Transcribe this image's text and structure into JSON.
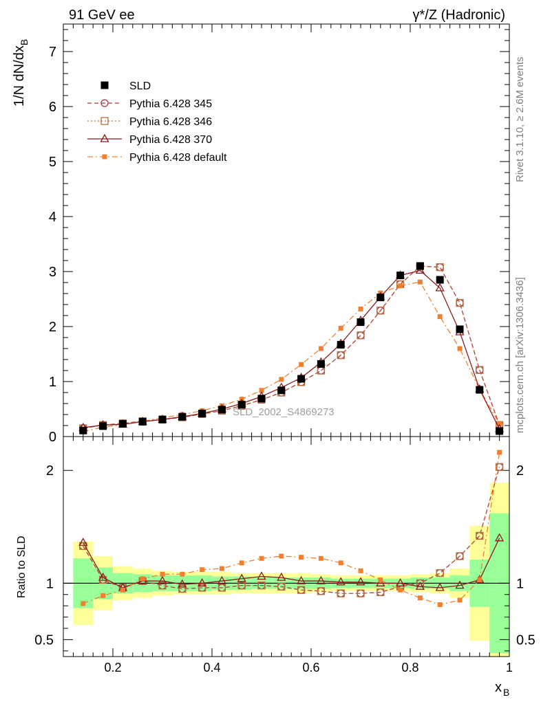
{
  "header": {
    "left": "91 GeV ee",
    "right": "γ*/Z (Hadronic)"
  },
  "side": {
    "rivet": "Rivet 3.1.10, ≥ 2.6M events",
    "mcplots": "mcplots.cern.ch [arXiv:1306.3436]"
  },
  "watermark": "SLD_2002_S4869273",
  "chart_data": [
    {
      "type": "line",
      "ylabel": "1/N dN/dx_B",
      "xlim": [
        0.1,
        1.0
      ],
      "ylim": [
        0,
        7.5
      ],
      "y_ticks": [
        0,
        1,
        2,
        3,
        4,
        5,
        6,
        7
      ],
      "x": [
        0.14,
        0.18,
        0.22,
        0.26,
        0.3,
        0.34,
        0.38,
        0.42,
        0.46,
        0.5,
        0.54,
        0.58,
        0.62,
        0.66,
        0.7,
        0.74,
        0.78,
        0.82,
        0.86,
        0.9,
        0.94,
        0.98
      ],
      "series": [
        {
          "name": "SLD",
          "color": "#000000",
          "marker": "filled-square",
          "line": "none",
          "values": [
            0.11,
            0.19,
            0.23,
            0.27,
            0.31,
            0.36,
            0.42,
            0.49,
            0.58,
            0.69,
            0.84,
            1.05,
            1.32,
            1.67,
            2.08,
            2.53,
            2.93,
            3.1,
            2.85,
            1.95,
            0.85,
            0.1
          ]
        },
        {
          "name": "Pythia 6.428 345",
          "color": "#b03040",
          "marker": "open-circle",
          "line": "dashed",
          "values": [
            0.15,
            0.21,
            0.24,
            0.28,
            0.31,
            0.35,
            0.41,
            0.47,
            0.56,
            0.67,
            0.8,
            0.99,
            1.2,
            1.48,
            1.84,
            2.29,
            2.77,
            3.1,
            3.08,
            2.43,
            1.21,
            0.21
          ]
        },
        {
          "name": "Pythia 6.428 346",
          "color": "#b07040",
          "marker": "open-square",
          "line": "dotted",
          "values": [
            0.15,
            0.21,
            0.24,
            0.28,
            0.31,
            0.35,
            0.41,
            0.47,
            0.56,
            0.67,
            0.8,
            0.99,
            1.2,
            1.48,
            1.84,
            2.29,
            2.77,
            3.1,
            3.08,
            2.43,
            1.21,
            0.21
          ]
        },
        {
          "name": "Pythia 6.428 370",
          "color": "#8b1a1a",
          "marker": "open-triangle",
          "line": "solid",
          "values": [
            0.16,
            0.21,
            0.22,
            0.27,
            0.31,
            0.36,
            0.42,
            0.5,
            0.6,
            0.73,
            0.89,
            1.07,
            1.35,
            1.69,
            2.11,
            2.54,
            2.93,
            3.02,
            2.7,
            1.9,
            0.86,
            0.14
          ]
        },
        {
          "name": "Pythia 6.428 default",
          "color": "#f08030",
          "marker": "filled-small-square",
          "line": "dash-dot",
          "values": [
            0.09,
            0.17,
            0.22,
            0.28,
            0.34,
            0.4,
            0.47,
            0.56,
            0.68,
            0.84,
            1.04,
            1.31,
            1.6,
            1.97,
            2.32,
            2.61,
            2.74,
            2.81,
            2.18,
            1.6,
            0.86,
            0.23
          ]
        }
      ],
      "legend_position": "top-left"
    },
    {
      "type": "line",
      "ylabel": "Ratio to SLD",
      "xlabel": "x_B",
      "xlim": [
        0.1,
        1.0
      ],
      "ylim": [
        0.35,
        2.3
      ],
      "y_ticks": [
        0.5,
        1,
        2
      ],
      "x_ticks": [
        0.2,
        0.4,
        0.6,
        0.8,
        1
      ],
      "x": [
        0.14,
        0.18,
        0.22,
        0.26,
        0.3,
        0.34,
        0.38,
        0.42,
        0.46,
        0.5,
        0.54,
        0.58,
        0.62,
        0.66,
        0.7,
        0.74,
        0.78,
        0.82,
        0.86,
        0.9,
        0.94,
        0.98
      ],
      "reference_line": 1,
      "bands": {
        "inner_color": "#99ff99",
        "outer_color": "#ffff99",
        "inner_half_width": [
          0.22,
          0.14,
          0.09,
          0.08,
          0.07,
          0.07,
          0.07,
          0.06,
          0.06,
          0.05,
          0.05,
          0.05,
          0.05,
          0.04,
          0.04,
          0.04,
          0.04,
          0.05,
          0.05,
          0.07,
          0.21,
          0.62
        ],
        "outer_half_width": [
          0.37,
          0.24,
          0.15,
          0.13,
          0.11,
          0.1,
          0.1,
          0.1,
          0.09,
          0.09,
          0.09,
          0.09,
          0.08,
          0.07,
          0.07,
          0.07,
          0.07,
          0.08,
          0.09,
          0.13,
          0.51,
          0.89
        ]
      },
      "series": [
        {
          "name": "Pythia 6.428 345",
          "color": "#b03040",
          "values": [
            1.33,
            1.03,
            0.96,
            1.02,
            0.98,
            0.95,
            0.96,
            0.96,
            0.98,
            0.98,
            0.97,
            0.94,
            0.93,
            0.91,
            0.91,
            0.92,
            0.97,
            1.0,
            1.09,
            1.24,
            1.42,
            2.03
          ]
        },
        {
          "name": "Pythia 6.428 346",
          "color": "#b07040",
          "values": [
            1.33,
            1.03,
            0.96,
            1.02,
            0.98,
            0.95,
            0.96,
            0.96,
            0.98,
            0.98,
            0.97,
            0.94,
            0.93,
            0.91,
            0.91,
            0.92,
            0.97,
            1.0,
            1.09,
            1.24,
            1.42,
            2.03
          ]
        },
        {
          "name": "Pythia 6.428 370",
          "color": "#8b1a1a",
          "values": [
            1.36,
            1.05,
            0.96,
            1.02,
            1.02,
            0.99,
            1.0,
            1.02,
            1.04,
            1.06,
            1.05,
            1.02,
            1.02,
            1.01,
            1.01,
            1.0,
            1.0,
            0.97,
            0.96,
            0.98,
            1.03,
            1.4
          ]
        },
        {
          "name": "Pythia 6.428 default",
          "color": "#f08030",
          "values": [
            0.82,
            0.89,
            0.94,
            1.04,
            1.08,
            1.08,
            1.12,
            1.13,
            1.18,
            1.22,
            1.24,
            1.23,
            1.22,
            1.18,
            1.11,
            1.03,
            0.94,
            0.87,
            0.81,
            0.85,
            1.03,
            2.16
          ]
        }
      ]
    }
  ]
}
